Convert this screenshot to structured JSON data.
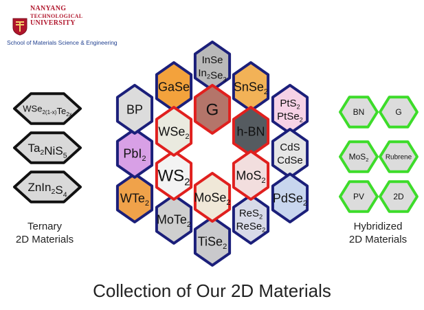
{
  "logo": {
    "line1": "NANYANG",
    "line2": "TECHNOLOGICAL",
    "line3": "UNIVERSITY",
    "school": "School of Materials Science & Engineering",
    "color": "#b0152b"
  },
  "title": "Collection of Our 2D Materials",
  "left_caption": [
    "Ternary",
    "2D Materials"
  ],
  "right_caption": [
    "Hybridized",
    "2D Materials"
  ],
  "colors": {
    "navy_border": "#1b1f7a",
    "red_border": "#e0201e",
    "green_border": "#3ddc2a",
    "black_border": "#111111"
  },
  "center_hexes": [
    {
      "label": [
        [
          "G",
          ""
        ]
      ],
      "border": "red",
      "fill": "#b4756a"
    },
    {
      "label": [
        [
          "h-BN",
          ""
        ]
      ],
      "border": "red",
      "fill": "#555b60",
      "textcolor": "#ffffff"
    },
    {
      "label": [
        [
          "MoS",
          ""
        ],
        [
          "2",
          "sub"
        ]
      ],
      "border": "red",
      "fill": "#f2dede"
    },
    {
      "label": [
        [
          "MoSe",
          ""
        ],
        [
          "2",
          "sub"
        ]
      ],
      "border": "red",
      "fill": "#f0e8d8"
    },
    {
      "label": [
        [
          "WS",
          ""
        ],
        [
          "2",
          "sub"
        ]
      ],
      "border": "red",
      "fill": "#f3f3f3"
    },
    {
      "label": [
        [
          "WSe",
          ""
        ],
        [
          "2",
          "sub"
        ]
      ],
      "border": "red",
      "fill": "#eaeadf"
    }
  ],
  "outer_hexes": [
    {
      "lines": [
        [
          [
            "InSe",
            ""
          ]
        ],
        [
          [
            "In",
            ""
          ],
          [
            "2",
            "sub"
          ],
          [
            "Se",
            ""
          ],
          [
            "3",
            "sub"
          ]
        ]
      ],
      "fill": "#b9b9b9"
    },
    {
      "lines": [
        [
          [
            "SnSe",
            ""
          ],
          [
            "2",
            "sub"
          ]
        ]
      ],
      "fill": "#f2b257"
    },
    {
      "lines": [
        [
          [
            "PtS",
            ""
          ],
          [
            "2",
            "sub"
          ]
        ],
        [
          [
            "PtSe",
            ""
          ],
          [
            "2",
            "sub"
          ]
        ]
      ],
      "fill": "#f6d2e6"
    },
    {
      "lines": [
        [
          [
            "CdS",
            ""
          ]
        ],
        [
          [
            "CdSe",
            ""
          ]
        ]
      ],
      "fill": "#e6e6e6"
    },
    {
      "lines": [
        [
          [
            "PdSe",
            ""
          ],
          [
            "2",
            "sub"
          ]
        ]
      ],
      "fill": "#c8d6ee"
    },
    {
      "lines": [
        [
          [
            "ReS",
            ""
          ],
          [
            "2",
            "sub"
          ]
        ],
        [
          [
            "ReSe",
            ""
          ],
          [
            "2",
            "sub"
          ]
        ]
      ],
      "fill": "#d8dae8"
    },
    {
      "lines": [
        [
          [
            "TiSe",
            ""
          ],
          [
            "2",
            "sub"
          ]
        ]
      ],
      "fill": "#c9c9cc"
    },
    {
      "lines": [
        [
          [
            "MoTe",
            ""
          ],
          [
            "2",
            "sub"
          ]
        ]
      ],
      "fill": "#cfcfcf"
    },
    {
      "lines": [
        [
          [
            "WTe",
            ""
          ],
          [
            "2",
            "sub"
          ]
        ]
      ],
      "fill": "#f0a24a"
    },
    {
      "lines": [
        [
          [
            "PbI",
            ""
          ],
          [
            "2",
            "sub"
          ]
        ]
      ],
      "fill": "#d8a0e6"
    },
    {
      "lines": [
        [
          [
            "BP",
            ""
          ]
        ]
      ],
      "fill": "#dcdcdc"
    },
    {
      "lines": [
        [
          [
            "GaSe",
            ""
          ]
        ]
      ],
      "fill": "#f3a23c"
    }
  ],
  "left_hexes": [
    {
      "lines": [
        [
          [
            "WSe",
            ""
          ],
          [
            "2(1-x)",
            "sub"
          ],
          [
            "Te",
            ""
          ],
          [
            "2x",
            "sub"
          ]
        ]
      ]
    },
    {
      "lines": [
        [
          [
            "Ta",
            ""
          ],
          [
            "2",
            "sub"
          ],
          [
            "NiS",
            ""
          ],
          [
            "5",
            "sub"
          ]
        ]
      ]
    },
    {
      "lines": [
        [
          [
            "ZnIn",
            ""
          ],
          [
            "2",
            "sub"
          ],
          [
            "S",
            ""
          ],
          [
            "4",
            "sub"
          ]
        ]
      ]
    }
  ],
  "right_hexes": [
    {
      "lines": [
        [
          [
            "BN",
            ""
          ]
        ]
      ]
    },
    {
      "lines": [
        [
          [
            "G",
            ""
          ]
        ]
      ]
    },
    {
      "lines": [
        [
          [
            "MoS",
            ""
          ],
          [
            "2",
            "sub"
          ]
        ]
      ]
    },
    {
      "lines": [
        [
          [
            "Rubrene",
            ""
          ]
        ]
      ]
    },
    {
      "lines": [
        [
          [
            "PV",
            ""
          ]
        ]
      ]
    },
    {
      "lines": [
        [
          [
            "2D",
            ""
          ]
        ]
      ]
    }
  ]
}
